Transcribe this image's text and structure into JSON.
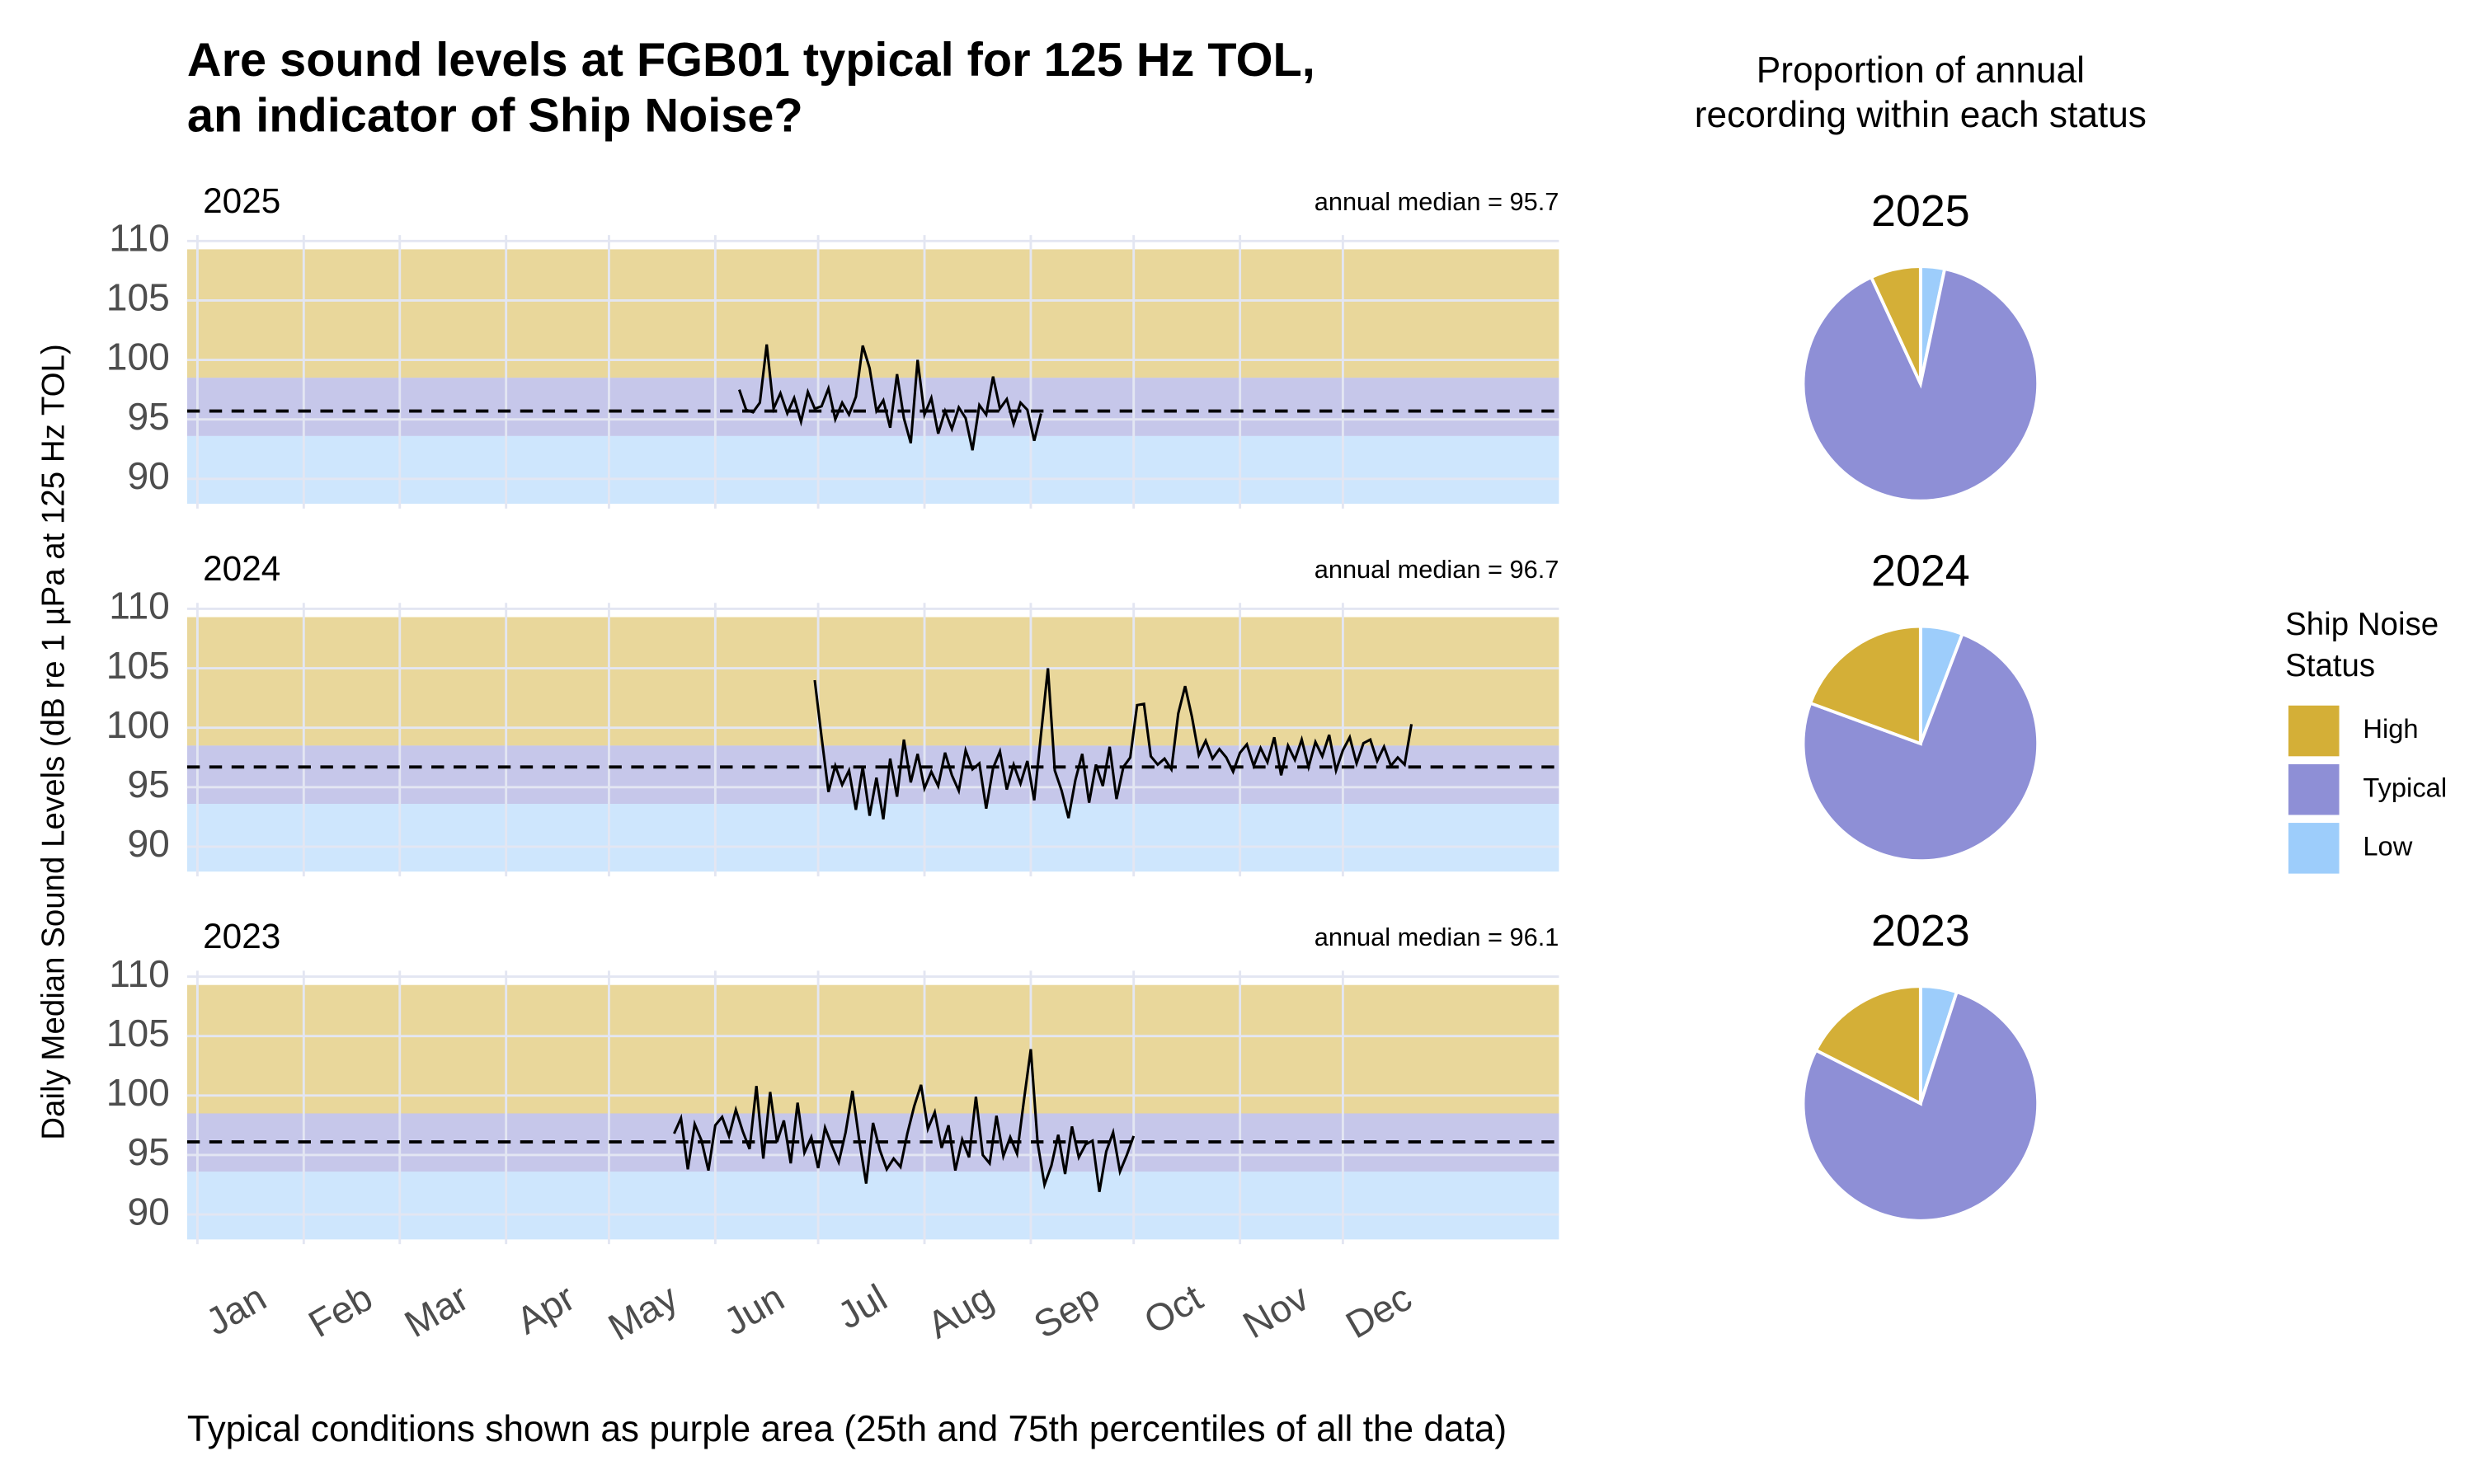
{
  "title": [
    "Are sound levels at FGB01 typical for 125 Hz TOL,",
    "an indicator of Ship Noise?"
  ],
  "y_label": "Daily Median Sound Levels (dB re 1 µPa at 125 Hz TOL)",
  "caption": "Typical conditions shown as purple area (25th and 75th percentiles of all the data)",
  "pie_heading": [
    "Proportion of annual",
    "recording within each status"
  ],
  "legend": {
    "title": [
      "Ship Noise",
      "Status"
    ],
    "entries": [
      {
        "name": "High",
        "color": "#d4af37"
      },
      {
        "name": "Typical",
        "color": "#8e8fd6"
      },
      {
        "name": "Low",
        "color": "#9dcdfb"
      }
    ]
  },
  "xticks": [
    {
      "value": 1,
      "label": "Jan"
    },
    {
      "value": 32,
      "label": "Feb"
    },
    {
      "value": 60,
      "label": "Mar"
    },
    {
      "value": 91,
      "label": "Apr"
    },
    {
      "value": 121,
      "label": "May"
    },
    {
      "value": 152,
      "label": "Jun"
    },
    {
      "value": 182,
      "label": "Jul"
    },
    {
      "value": 213,
      "label": "Aug"
    },
    {
      "value": 244,
      "label": "Sep"
    },
    {
      "value": 274,
      "label": "Oct"
    },
    {
      "value": 305,
      "label": "Nov"
    },
    {
      "value": 335,
      "label": "Dec"
    }
  ],
  "chart_data": [
    {
      "type": "line",
      "title": "2025",
      "annotation": "annual median = 95.7",
      "median": 95.7,
      "xlim": [
        -2,
        398
      ],
      "ylim": [
        87.5,
        110.5
      ],
      "yticks": [
        90,
        95,
        100,
        105,
        110
      ],
      "bands": [
        [
          98.5,
          109.3
        ],
        [
          93.6,
          98.5
        ],
        [
          87.9,
          93.6
        ]
      ],
      "x": [
        159,
        161,
        163,
        165,
        167,
        169,
        171,
        173,
        175,
        177,
        179,
        181,
        183,
        185,
        187,
        189,
        191,
        193,
        195,
        197,
        199,
        201,
        203,
        205,
        207,
        209,
        211,
        213,
        215,
        217,
        219,
        221,
        223,
        225,
        227,
        229,
        231,
        233,
        235,
        237,
        239,
        241,
        243,
        245,
        247
      ],
      "values": [
        97.5,
        95.8,
        95.6,
        96.4,
        101.3,
        95.9,
        97.2,
        95.5,
        96.8,
        94.8,
        97.3,
        95.9,
        96.1,
        97.6,
        95.0,
        96.4,
        95.4,
        96.9,
        101.2,
        99.3,
        95.7,
        96.6,
        94.3,
        98.8,
        95.1,
        93.0,
        100.0,
        95.4,
        96.8,
        93.8,
        95.7,
        94.2,
        96.0,
        95.1,
        92.4,
        96.2,
        95.4,
        98.6,
        95.9,
        96.7,
        94.6,
        96.4,
        95.8,
        93.2,
        95.5
      ]
    },
    {
      "type": "line",
      "title": "2024",
      "annotation": "annual median = 96.7",
      "median": 96.7,
      "xlim": [
        -2,
        398
      ],
      "ylim": [
        87.5,
        110.5
      ],
      "yticks": [
        90,
        95,
        100,
        105,
        110
      ],
      "bands": [
        [
          98.5,
          109.3
        ],
        [
          93.6,
          98.5
        ],
        [
          87.9,
          93.6
        ]
      ],
      "x": [
        181,
        183,
        185,
        187,
        189,
        191,
        193,
        195,
        197,
        199,
        201,
        203,
        205,
        207,
        209,
        211,
        213,
        215,
        217,
        219,
        221,
        223,
        225,
        227,
        229,
        231,
        233,
        235,
        237,
        239,
        241,
        243,
        245,
        247,
        249,
        251,
        253,
        255,
        257,
        259,
        261,
        263,
        265,
        267,
        269,
        271,
        273,
        275,
        277,
        279,
        281,
        283,
        285,
        287,
        289,
        291,
        293,
        295,
        297,
        299,
        301,
        303,
        305,
        307,
        309,
        311,
        313,
        315,
        317,
        319,
        321,
        323,
        325,
        327,
        329,
        331,
        333,
        335,
        337,
        339,
        341,
        343,
        345,
        347,
        349,
        351,
        353,
        355
      ],
      "values": [
        104.0,
        99.2,
        94.6,
        96.8,
        95.2,
        96.4,
        93.1,
        96.7,
        92.6,
        95.8,
        92.3,
        97.4,
        94.2,
        99.0,
        95.4,
        97.8,
        94.9,
        96.3,
        95.1,
        97.9,
        96.0,
        94.7,
        98.1,
        96.5,
        97.0,
        93.2,
        96.6,
        98.0,
        94.8,
        96.9,
        95.3,
        97.2,
        93.9,
        99.5,
        105.0,
        96.4,
        94.7,
        92.4,
        95.6,
        97.8,
        93.7,
        96.9,
        95.1,
        98.4,
        94.0,
        96.7,
        97.5,
        101.9,
        102.0,
        97.6,
        96.9,
        97.4,
        96.5,
        101.2,
        103.5,
        100.9,
        97.7,
        98.9,
        97.4,
        98.2,
        97.5,
        96.3,
        97.9,
        98.6,
        96.8,
        98.3,
        97.1,
        99.2,
        96.0,
        98.5,
        97.3,
        99.0,
        96.7,
        98.8,
        97.6,
        99.4,
        96.4,
        98.1,
        99.2,
        97.0,
        98.7,
        99.0,
        97.2,
        98.4,
        96.8,
        97.5,
        96.9,
        100.3
      ]
    },
    {
      "type": "line",
      "title": "2023",
      "annotation": "annual median = 96.1",
      "median": 96.1,
      "xlim": [
        -2,
        398
      ],
      "ylim": [
        87.5,
        110.5
      ],
      "yticks": [
        90,
        95,
        100,
        105,
        110
      ],
      "bands": [
        [
          98.5,
          109.3
        ],
        [
          93.6,
          98.5
        ],
        [
          87.9,
          93.6
        ]
      ],
      "x": [
        140,
        142,
        144,
        146,
        148,
        150,
        152,
        154,
        156,
        158,
        160,
        162,
        164,
        166,
        168,
        170,
        172,
        174,
        176,
        178,
        180,
        182,
        184,
        186,
        188,
        190,
        192,
        194,
        196,
        198,
        200,
        202,
        204,
        206,
        208,
        210,
        212,
        214,
        216,
        218,
        220,
        222,
        224,
        226,
        228,
        230,
        232,
        234,
        236,
        238,
        240,
        242,
        244,
        246,
        248,
        250,
        252,
        254,
        256,
        258,
        260,
        262,
        264,
        266,
        268,
        270,
        272,
        274
      ],
      "values": [
        96.8,
        98.1,
        93.8,
        97.6,
        96.2,
        93.7,
        97.5,
        98.2,
        96.6,
        98.8,
        97.0,
        95.5,
        100.8,
        94.7,
        100.3,
        96.1,
        97.9,
        94.3,
        99.4,
        95.2,
        96.5,
        93.9,
        97.3,
        95.8,
        94.4,
        96.9,
        100.4,
        96.2,
        92.6,
        97.7,
        95.4,
        93.8,
        94.7,
        94.0,
        96.8,
        99.1,
        100.9,
        97.2,
        98.6,
        95.6,
        97.5,
        93.7,
        96.3,
        94.8,
        99.9,
        95.0,
        94.3,
        98.3,
        94.9,
        96.5,
        95.1,
        99.6,
        103.9,
        96.0,
        92.5,
        94.1,
        96.7,
        93.4,
        97.4,
        94.8,
        95.9,
        96.2,
        91.9,
        95.3,
        96.9,
        93.6,
        95.0,
        96.6
      ]
    },
    {
      "type": "pie",
      "title": "2025",
      "values": [
        6.9,
        89.8,
        3.3
      ]
    },
    {
      "type": "pie",
      "title": "2024",
      "values": [
        19.4,
        74.8,
        5.8
      ]
    },
    {
      "type": "pie",
      "title": "2023",
      "values": [
        17.5,
        77.5,
        5.0
      ]
    }
  ]
}
